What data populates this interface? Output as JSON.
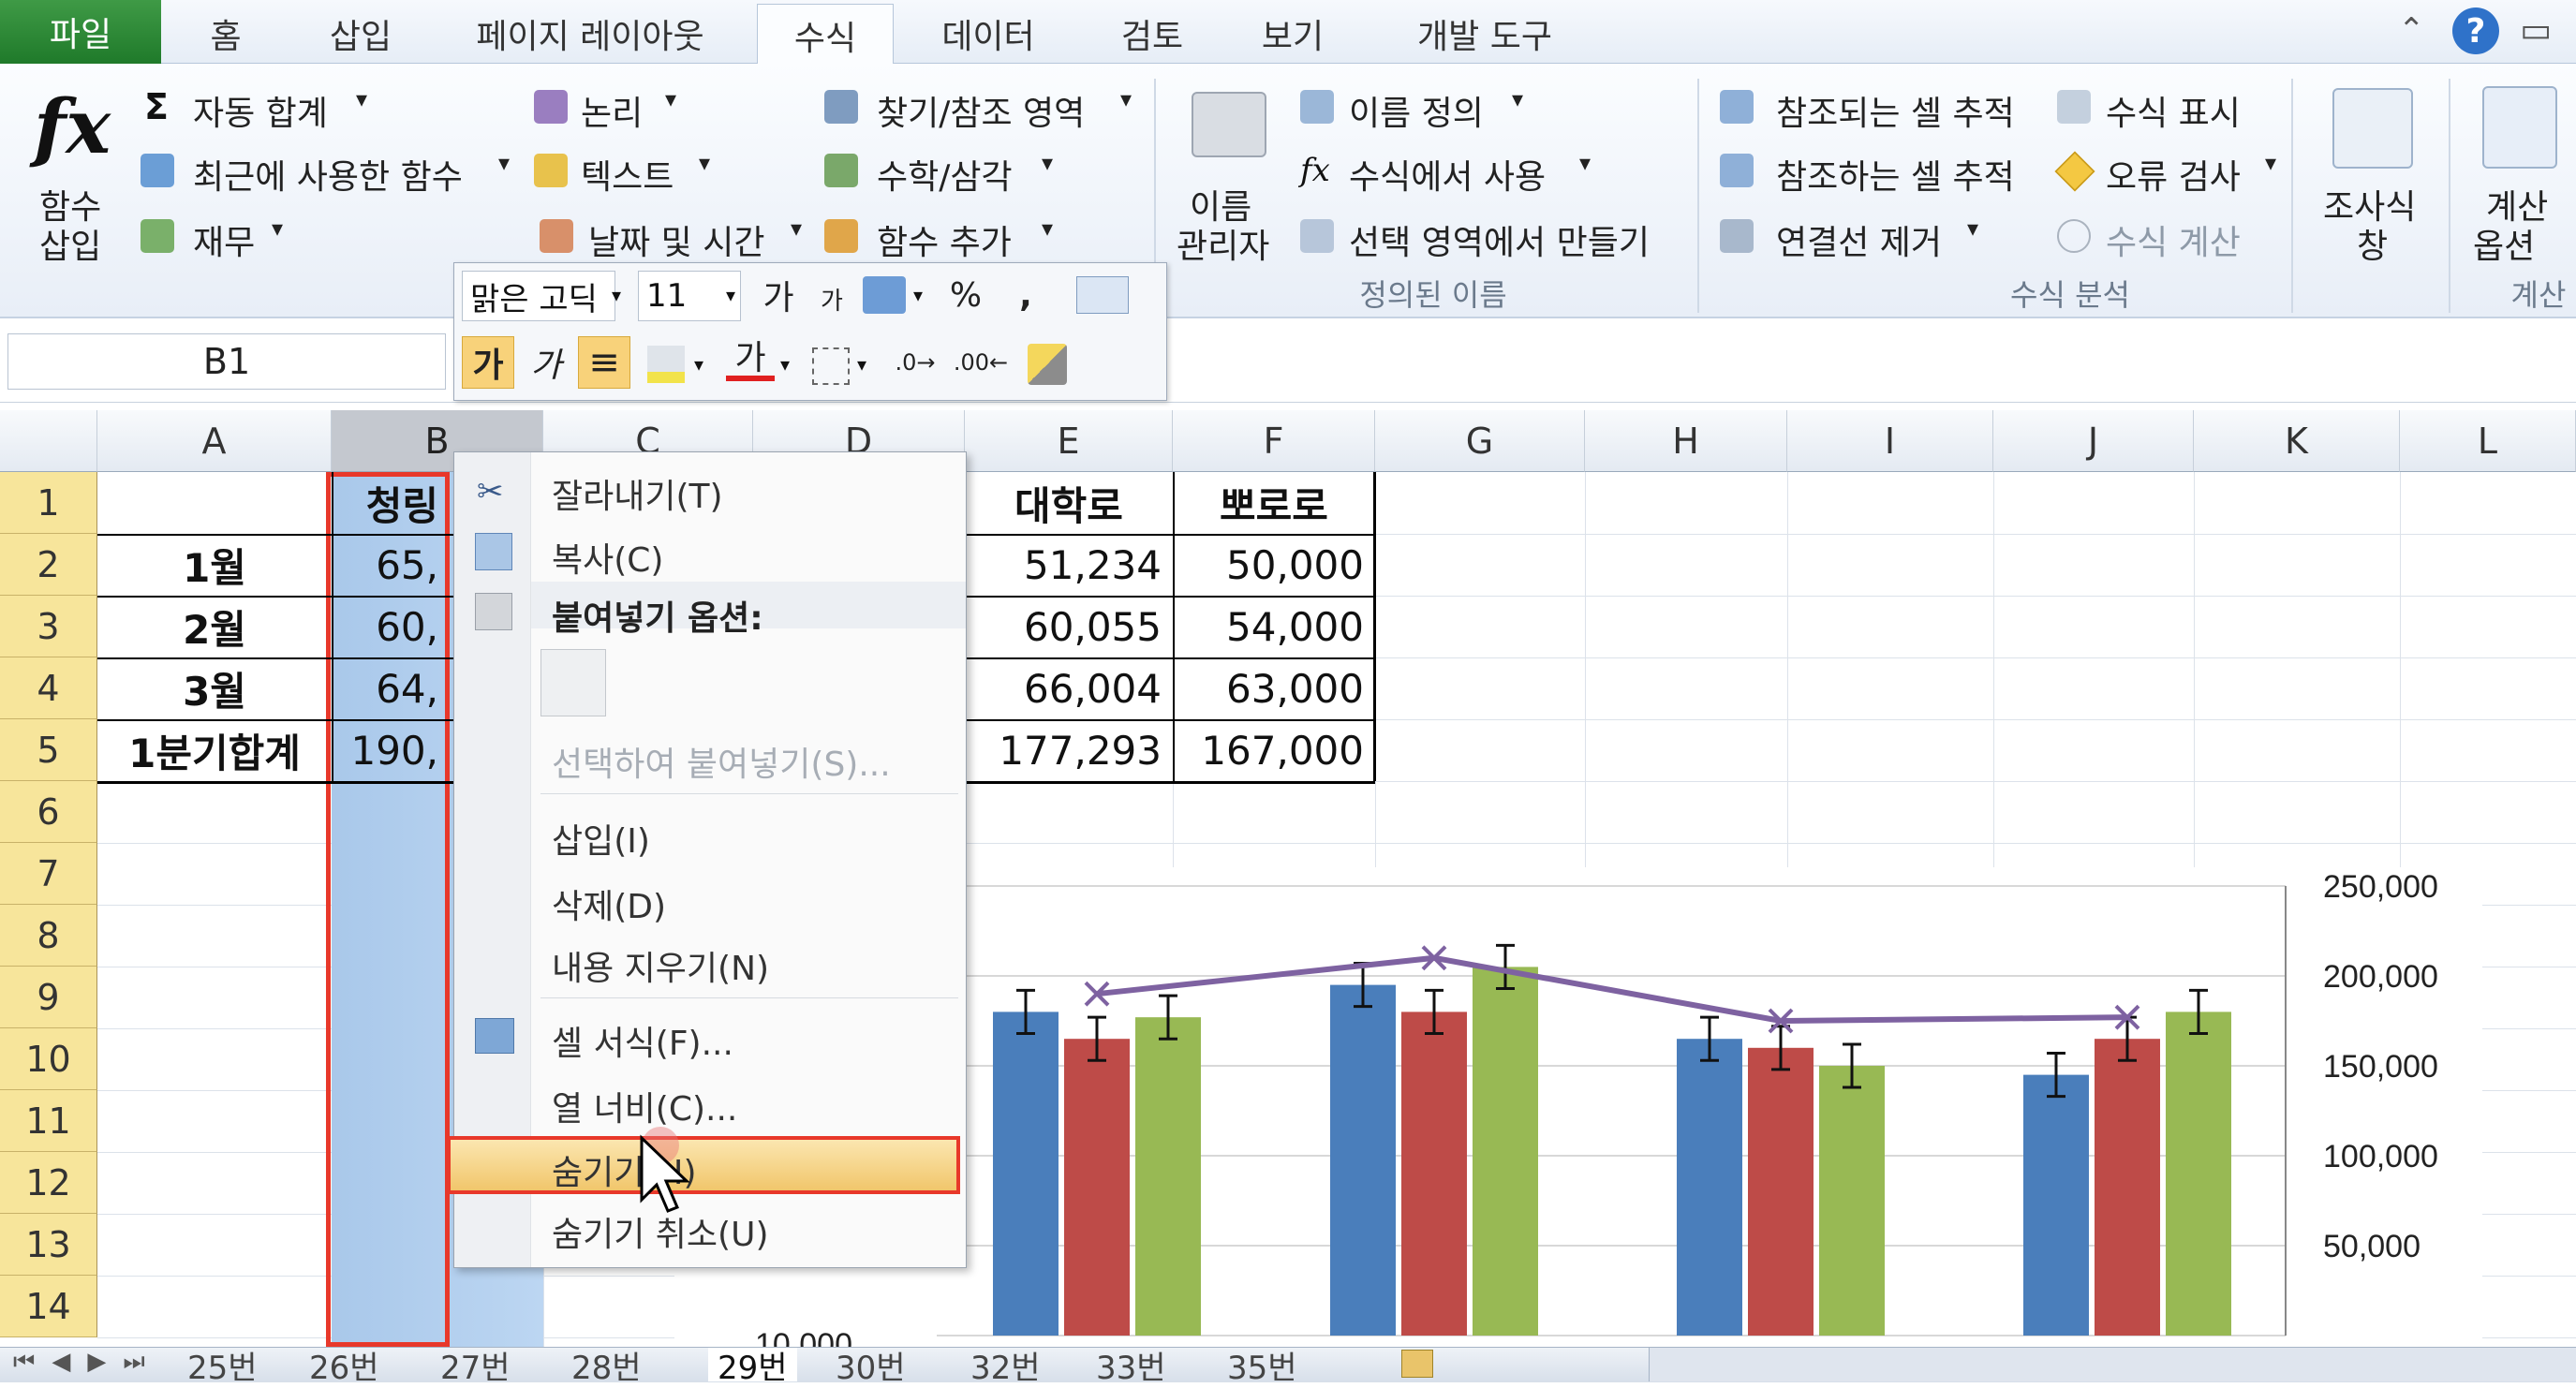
{
  "tabs": [
    "파일",
    "홈",
    "삽입",
    "페이지 레이아웃",
    "수식",
    "데이터",
    "검토",
    "보기",
    "개발 도구"
  ],
  "ribbon": {
    "insert_function": [
      "함수",
      "삽입"
    ],
    "library": [
      "자동 합계",
      "최근에 사용한 함수",
      "재무",
      "논리",
      "텍스트",
      "날짜 및 시간",
      "찾기/참조 영역",
      "수학/삼각",
      "함수 추가"
    ],
    "name_manager": [
      "이름",
      "관리자"
    ],
    "defined_names": [
      "이름 정의",
      "수식에서 사용",
      "선택 영역에서 만들기"
    ],
    "defined_names_group": "정의된 이름",
    "auditing": [
      "참조되는 셀 추적",
      "참조하는 셀 추적",
      "연결선 제거",
      "수식 표시",
      "오류 검사",
      "수식 계산"
    ],
    "auditing_group": "수식 분석",
    "watch": [
      "조사식",
      "창"
    ],
    "calc": [
      "계산",
      "옵션"
    ],
    "calc_group": "계산"
  },
  "name_box": "B1",
  "mini_toolbar": {
    "font": "맑은 고딕",
    "size": "11",
    "percent": "%",
    "comma": ","
  },
  "columns": [
    "A",
    "B",
    "C",
    "D",
    "E",
    "F",
    "G",
    "H",
    "I",
    "J",
    "K",
    "L"
  ],
  "rows": [
    "1",
    "2",
    "3",
    "4",
    "5",
    "6",
    "7",
    "8",
    "9",
    "10",
    "11",
    "12",
    "13",
    "14"
  ],
  "cells": {
    "B1": "청링",
    "E1": "대학로",
    "F1": "뽀로로",
    "A2": "1월",
    "A3": "2월",
    "A4": "3월",
    "A5": "1분기합계",
    "B2": "65,",
    "B3": "60,",
    "B4": "64,",
    "B5": "190,",
    "E2": "51,234",
    "E3": "60,055",
    "E4": "66,004",
    "E5": "177,293",
    "F2": "50,000",
    "F3": "54,000",
    "F4": "63,000",
    "F5": "167,000"
  },
  "context_menu": {
    "cut": "잘라내기(T)",
    "copy": "복사(C)",
    "paste_options": "붙여넣기 옵션:",
    "paste_special": "선택하여 붙여넣기(S)...",
    "insert": "삽입(I)",
    "delete": "삭제(D)",
    "clear": "내용 지우기(N)",
    "format_cells": "셀 서식(F)...",
    "column_width": "열 너비(C)...",
    "hide": "숨기기(H)",
    "unhide": "숨기기 취소(U)"
  },
  "sheet_tabs": [
    "25번",
    "26번",
    "27번",
    "28번",
    "29번",
    "30번",
    "32번",
    "33번",
    "35번"
  ],
  "chart_data": {
    "type": "bar",
    "series": [
      {
        "values": [
          180000,
          195000,
          165000,
          145000
        ],
        "color": "#4a7ebb"
      },
      {
        "values": [
          165000,
          180000,
          160000,
          165000
        ],
        "color": "#be4b48"
      },
      {
        "values": [
          177000,
          205000,
          150000,
          180000
        ],
        "color": "#98b954"
      },
      {
        "values": [
          190000,
          210000,
          175000,
          177000
        ],
        "color": "#7e62a1",
        "type": "line"
      }
    ],
    "y_right_ticks": [
      "250,000",
      "200,000",
      "150,000",
      "100,000",
      "50,000"
    ],
    "y_left_tick": "10,000",
    "ylim": [
      0,
      250000
    ]
  }
}
